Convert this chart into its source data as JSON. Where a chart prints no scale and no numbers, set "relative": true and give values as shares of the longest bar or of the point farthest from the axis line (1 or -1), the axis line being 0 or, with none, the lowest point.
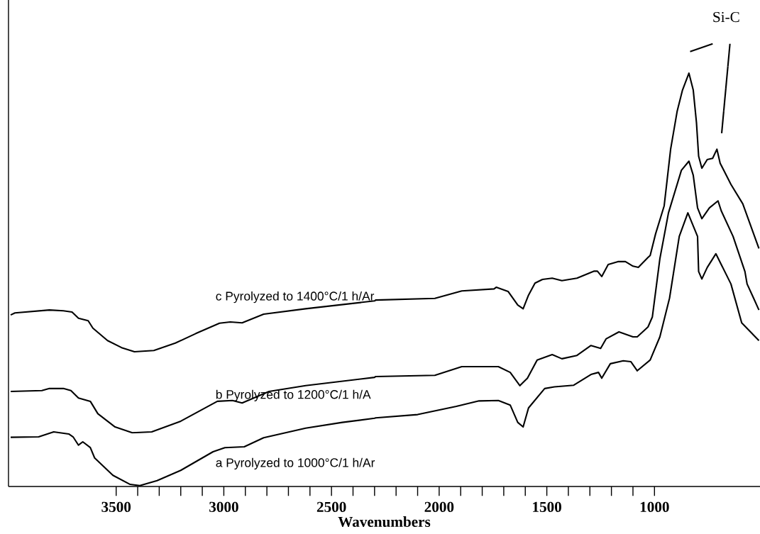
{
  "chart_data": {
    "type": "line",
    "xlabel": "Wavenumbers",
    "relative": true,
    "xlim": [
      4000,
      510
    ],
    "xticks": [
      3500,
      3000,
      2500,
      2000,
      1500,
      1000
    ],
    "marker": "none",
    "grid": false,
    "legend": false,
    "annotations": [
      "Si-C"
    ],
    "series": [
      {
        "name": "a  Pyrolyzed to 1000°C/1 h/Ar",
        "color": "#000000",
        "x": [
          3990,
          3860,
          3790,
          3720,
          3700,
          3675,
          3655,
          3620,
          3600,
          3515,
          3435,
          3390,
          3310,
          3200,
          3050,
          2995,
          2905,
          2815,
          2620,
          2450,
          2300,
          2295,
          2100,
          1920,
          1815,
          1725,
          1670,
          1635,
          1610,
          1585,
          1510,
          1465,
          1375,
          1295,
          1260,
          1245,
          1205,
          1145,
          1110,
          1080,
          1020,
          975,
          930,
          885,
          845,
          800,
          795,
          780,
          755,
          715,
          690,
          645,
          595,
          515
        ],
        "values": [
          0.119,
          0.12,
          0.132,
          0.127,
          0.12,
          0.1,
          0.108,
          0.094,
          0.069,
          0.027,
          0.005,
          0.002,
          0.014,
          0.039,
          0.084,
          0.094,
          0.096,
          0.118,
          0.141,
          0.155,
          0.165,
          0.166,
          0.174,
          0.194,
          0.207,
          0.208,
          0.197,
          0.155,
          0.144,
          0.19,
          0.237,
          0.241,
          0.245,
          0.271,
          0.276,
          0.262,
          0.297,
          0.304,
          0.302,
          0.28,
          0.306,
          0.362,
          0.456,
          0.605,
          0.662,
          0.605,
          0.52,
          0.502,
          0.53,
          0.563,
          0.537,
          0.49,
          0.396,
          0.353
        ]
      },
      {
        "name": "b  Pyrolyzed to 1200°C/1 h/A",
        "color": "#000000",
        "x": [
          3990,
          3845,
          3810,
          3745,
          3710,
          3675,
          3620,
          3585,
          3505,
          3425,
          3335,
          3200,
          3030,
          2960,
          2915,
          2790,
          2620,
          2300,
          2295,
          2020,
          1895,
          1725,
          1670,
          1625,
          1590,
          1545,
          1475,
          1430,
          1360,
          1295,
          1250,
          1225,
          1165,
          1100,
          1080,
          1030,
          1010,
          975,
          935,
          875,
          840,
          820,
          800,
          780,
          745,
          705,
          690,
          635,
          580,
          570,
          540,
          515
        ],
        "values": [
          0.23,
          0.232,
          0.237,
          0.237,
          0.232,
          0.214,
          0.206,
          0.176,
          0.144,
          0.13,
          0.132,
          0.158,
          0.206,
          0.208,
          0.202,
          0.23,
          0.244,
          0.264,
          0.266,
          0.269,
          0.29,
          0.29,
          0.276,
          0.244,
          0.262,
          0.306,
          0.319,
          0.309,
          0.317,
          0.341,
          0.334,
          0.357,
          0.374,
          0.362,
          0.362,
          0.386,
          0.41,
          0.551,
          0.662,
          0.765,
          0.787,
          0.753,
          0.674,
          0.648,
          0.674,
          0.691,
          0.667,
          0.605,
          0.52,
          0.49,
          0.456,
          0.427
        ]
      },
      {
        "name": "c  Pyrolyzed to 1400°C/1 h/Ar",
        "color": "#000000",
        "x": [
          3990,
          3970,
          3810,
          3745,
          3705,
          3675,
          3630,
          3608,
          3540,
          3475,
          3415,
          3325,
          3225,
          3130,
          3020,
          2970,
          2915,
          2815,
          2620,
          2300,
          2295,
          2020,
          1895,
          1745,
          1735,
          1680,
          1635,
          1610,
          1585,
          1555,
          1520,
          1475,
          1430,
          1360,
          1280,
          1265,
          1245,
          1215,
          1170,
          1135,
          1100,
          1075,
          1030,
          1020,
          995,
          955,
          925,
          895,
          870,
          840,
          820,
          805,
          795,
          780,
          755,
          730,
          710,
          695,
          645,
          590,
          515
        ],
        "values": [
          0.415,
          0.42,
          0.427,
          0.425,
          0.422,
          0.407,
          0.401,
          0.383,
          0.353,
          0.336,
          0.326,
          0.329,
          0.347,
          0.37,
          0.395,
          0.398,
          0.396,
          0.417,
          0.43,
          0.449,
          0.451,
          0.455,
          0.473,
          0.478,
          0.482,
          0.472,
          0.439,
          0.43,
          0.463,
          0.492,
          0.501,
          0.504,
          0.498,
          0.504,
          0.521,
          0.521,
          0.508,
          0.537,
          0.544,
          0.544,
          0.533,
          0.53,
          0.554,
          0.559,
          0.611,
          0.679,
          0.816,
          0.907,
          0.959,
          1.0,
          0.959,
          0.88,
          0.799,
          0.77,
          0.791,
          0.794,
          0.816,
          0.782,
          0.731,
          0.684,
          0.576
        ]
      }
    ]
  }
}
